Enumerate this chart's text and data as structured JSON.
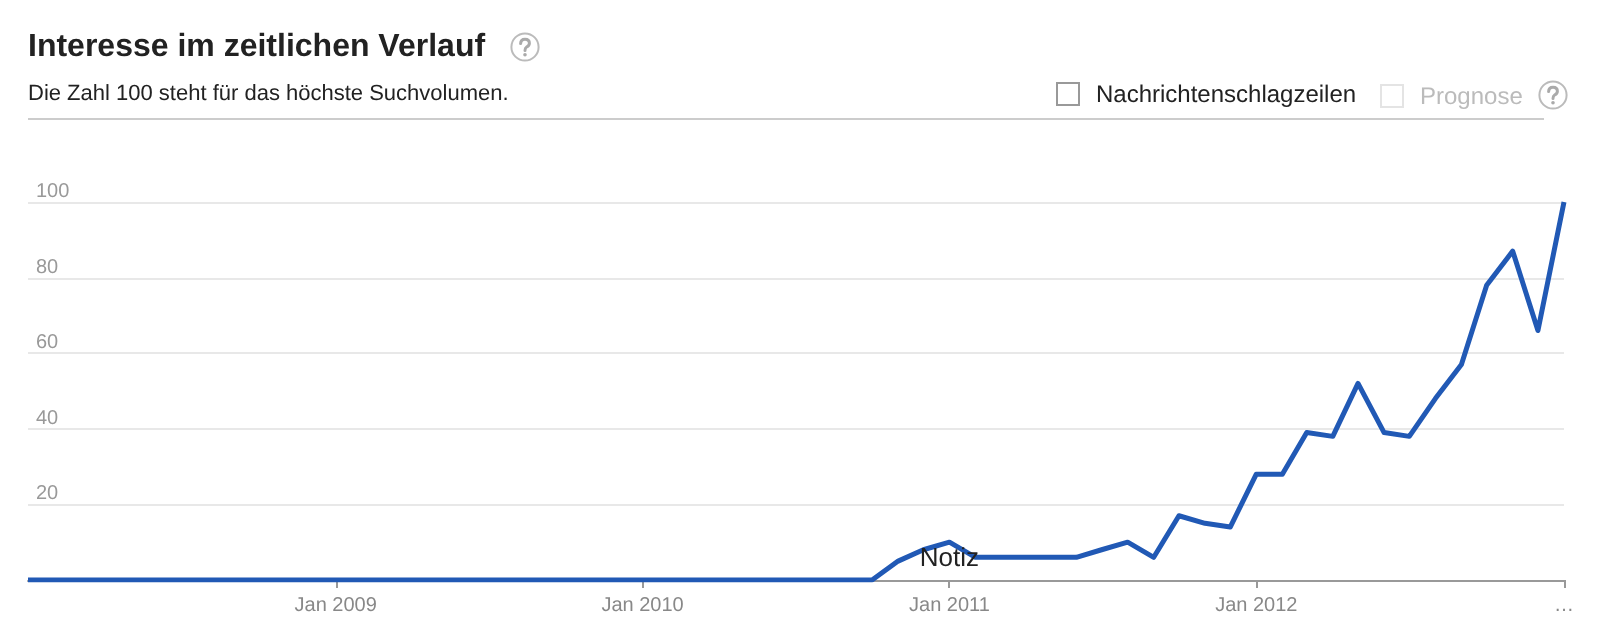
{
  "chart_data": {
    "type": "line",
    "title": "Interesse im zeitlichen Verlauf",
    "subtitle": "Die Zahl 100 steht für das höchste Suchvolumen.",
    "x": [
      "2008-01",
      "2008-02",
      "2008-03",
      "2008-04",
      "2008-05",
      "2008-06",
      "2008-07",
      "2008-08",
      "2008-09",
      "2008-10",
      "2008-11",
      "2008-12",
      "2009-01",
      "2009-02",
      "2009-03",
      "2009-04",
      "2009-05",
      "2009-06",
      "2009-07",
      "2009-08",
      "2009-09",
      "2009-10",
      "2009-11",
      "2009-12",
      "2010-01",
      "2010-02",
      "2010-03",
      "2010-04",
      "2010-05",
      "2010-06",
      "2010-07",
      "2010-08",
      "2010-09",
      "2010-10",
      "2010-11",
      "2010-12",
      "2011-01",
      "2011-02",
      "2011-03",
      "2011-04",
      "2011-05",
      "2011-06",
      "2011-07",
      "2011-08",
      "2011-09",
      "2011-10",
      "2011-11",
      "2011-12",
      "2012-01",
      "2012-02",
      "2012-03",
      "2012-04",
      "2012-05",
      "2012-06",
      "2012-07",
      "2012-08",
      "2012-09",
      "2012-10",
      "2012-11",
      "2012-12",
      "2013-01"
    ],
    "series": [
      {
        "color": "#2159b5",
        "values": [
          0,
          0,
          0,
          0,
          0,
          0,
          0,
          0,
          0,
          0,
          0,
          0,
          0,
          0,
          0,
          0,
          0,
          0,
          0,
          0,
          0,
          0,
          0,
          0,
          0,
          0,
          0,
          0,
          0,
          0,
          0,
          0,
          0,
          0,
          5,
          8,
          10,
          6,
          6,
          6,
          6,
          6,
          8,
          10,
          6,
          17,
          15,
          14,
          28,
          28,
          39,
          38,
          52,
          39,
          38,
          48,
          57,
          78,
          87,
          66,
          100
        ]
      }
    ],
    "xlim": [
      "2008-01",
      "2013-01"
    ],
    "xticks": [
      {
        "value": "2009-01",
        "label": "Jan 2009"
      },
      {
        "value": "2010-01",
        "label": "Jan 2010"
      },
      {
        "value": "2011-01",
        "label": "Jan 2011"
      },
      {
        "value": "2012-01",
        "label": "Jan 2012"
      },
      {
        "value": "2013-01",
        "label": "…"
      }
    ],
    "ylim": [
      0,
      100
    ],
    "yticks": [
      20,
      40,
      60,
      80,
      100
    ],
    "grid": "y",
    "marker": "none",
    "line_style": "solid",
    "annotations": [
      {
        "text": "Notiz",
        "x": "2011-01",
        "y": 10
      },
      "Nachrichtenschlagzeilen",
      "Prognose"
    ]
  }
}
